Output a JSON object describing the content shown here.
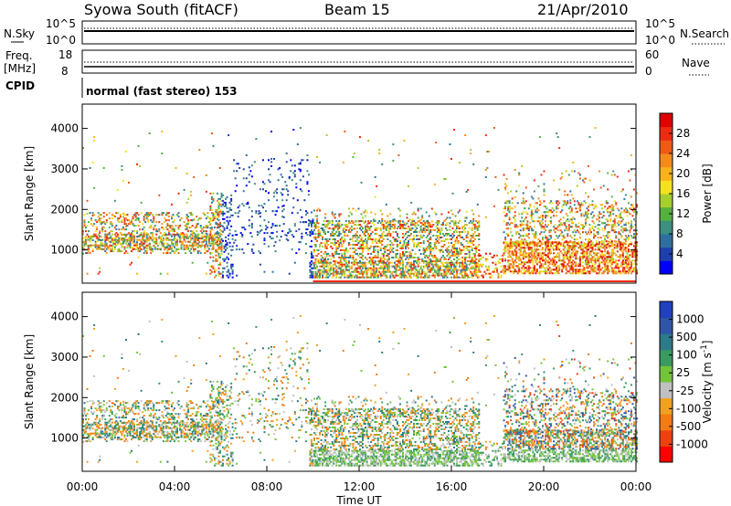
{
  "header": {
    "station": "Syowa South (fitACF)",
    "beam": "Beam 15",
    "date": "21/Apr/2010"
  },
  "strips": {
    "nsky_label": "N.Sky",
    "nsky_ticks": [
      "10^5",
      "10^0"
    ],
    "nsearch_label": "N.Search",
    "nsearch_ticks": [
      "10^5",
      "10^0"
    ],
    "freq_label": "Freq.",
    "freq_unit": "[MHz]",
    "freq_ticks": [
      "18",
      "8"
    ],
    "nave_label": "Nave",
    "nave_ticks": [
      "60",
      "0"
    ],
    "cpid_label": "CPID",
    "cpid_text": "normal (fast stereo) 153"
  },
  "chart_data": [
    {
      "type": "heatmap",
      "name": "power",
      "ylabel": "Slant Range [km]",
      "yticks": [
        "4000",
        "3000",
        "2000",
        "1000"
      ],
      "ylim": [
        180,
        4600
      ],
      "xlim": [
        0,
        24
      ],
      "colorbar": {
        "label": "Power [dB]",
        "ticks": [
          "28",
          "24",
          "20",
          "16",
          "12",
          "8",
          "4"
        ],
        "range": [
          0,
          32
        ],
        "colors": [
          "#0000ff",
          "#1f3fb0",
          "#2f6f9f",
          "#3d8f80",
          "#55b040",
          "#a6cf2c",
          "#f5e21f",
          "#f8b21a",
          "#f58a1a",
          "#ef5a14",
          "#ee2a10",
          "#e00000"
        ]
      }
    },
    {
      "type": "heatmap",
      "name": "velocity",
      "ylabel": "Slant Range [km]",
      "yticks": [
        "4000",
        "3000",
        "2000",
        "1000"
      ],
      "ylim": [
        180,
        4600
      ],
      "xlim": [
        0,
        24
      ],
      "xlabel": "Time UT",
      "xticks": [
        "00:00",
        "04:00",
        "08:00",
        "12:00",
        "16:00",
        "20:00",
        "00:00"
      ],
      "colorbar": {
        "label": "Velocity [m s",
        "label_sup": "-1",
        "label_end": "]",
        "ticks": [
          "1000",
          "500",
          "100",
          "25",
          "-25",
          "-100",
          "-500",
          "-1000"
        ],
        "colors": [
          "#ff0000",
          "#f04010",
          "#f57a12",
          "#f2a020",
          "#c0c0c0",
          "#74c43a",
          "#3a9a60",
          "#2d7a8a",
          "#2f55a8",
          "#2040c0"
        ]
      }
    }
  ]
}
